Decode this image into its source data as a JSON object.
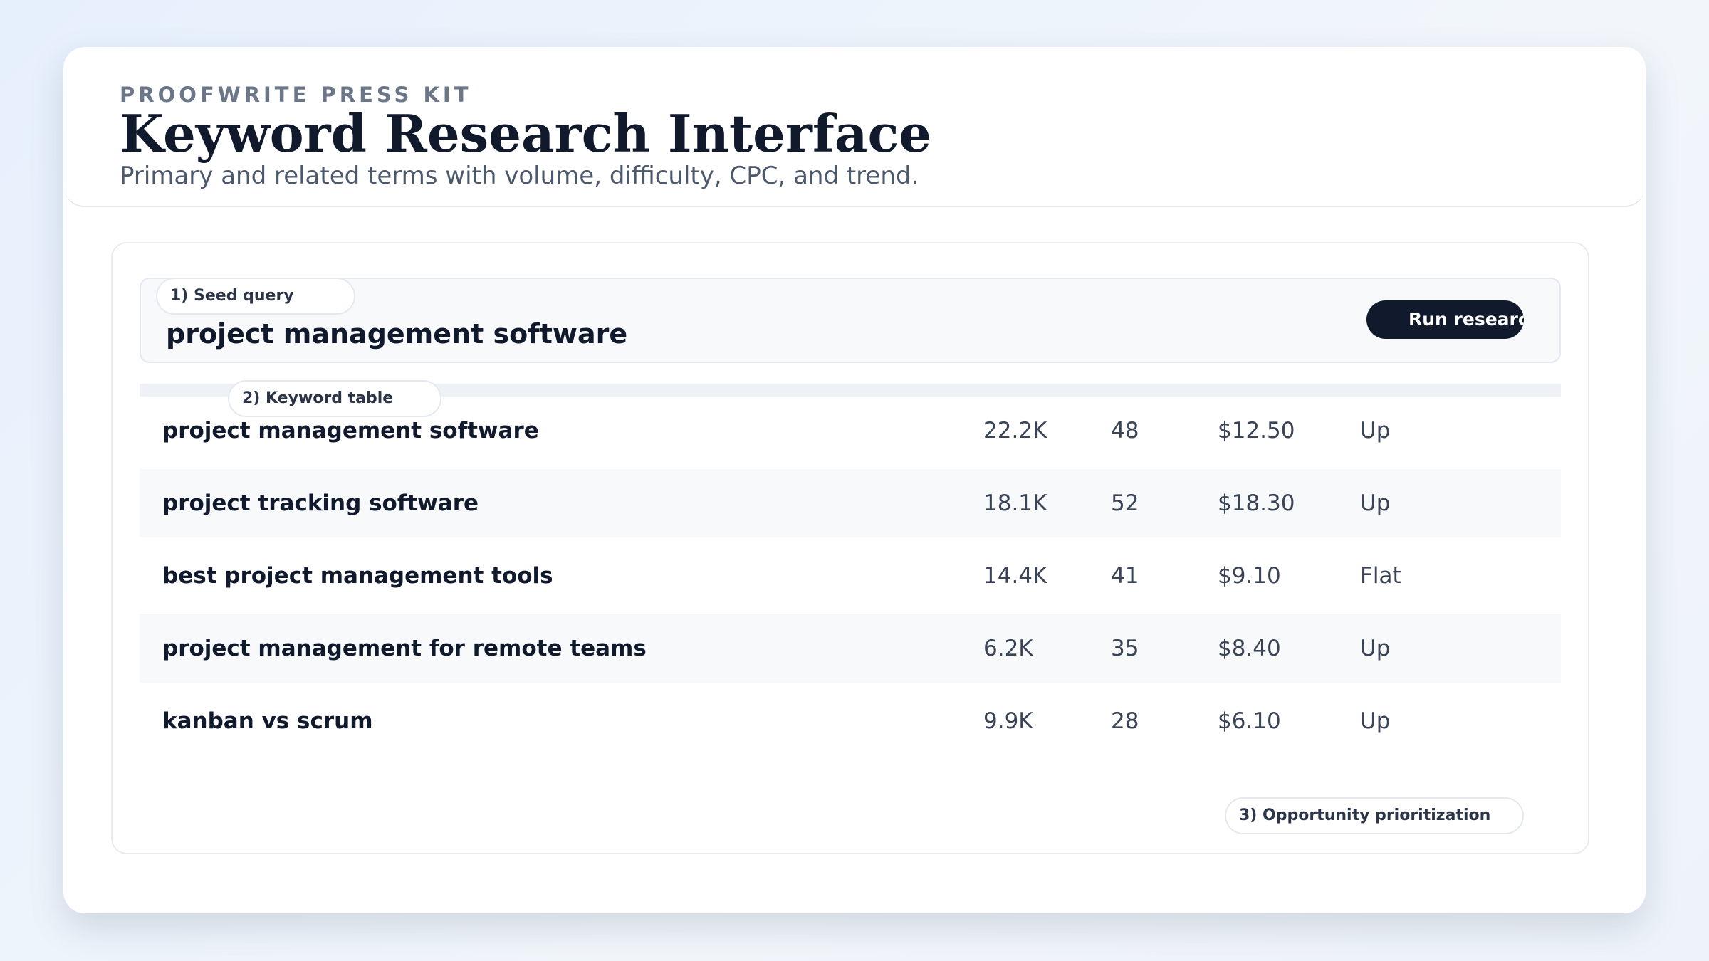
{
  "header": {
    "kicker": "PROOFWRITE PRESS KIT",
    "title": "Keyword Research Interface",
    "subtitle": "Primary and related terms with volume, difficulty, CPC, and trend."
  },
  "seed": {
    "label": "1) Seed query",
    "query": "project management software",
    "button": "Run research"
  },
  "table": {
    "label": "2) Keyword table",
    "rows": [
      [
        "project management software",
        "22.2K",
        "48",
        "$12.50",
        "Up"
      ],
      [
        "project tracking software",
        "18.1K",
        "52",
        "$18.30",
        "Up"
      ],
      [
        "best project management tools",
        "14.4K",
        "41",
        "$9.10",
        "Flat"
      ],
      [
        "project management for remote teams",
        "6.2K",
        "35",
        "$8.40",
        "Up"
      ],
      [
        "kanban vs scrum",
        "9.9K",
        "28",
        "$6.10",
        "Up"
      ]
    ]
  },
  "footer": {
    "label": "3) Opportunity prioritization"
  }
}
